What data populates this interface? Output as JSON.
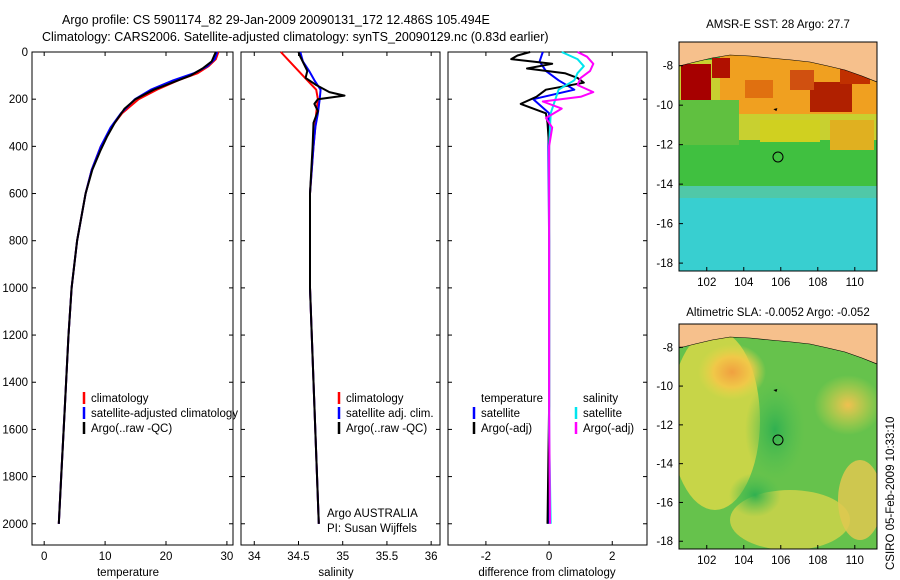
{
  "figure": {
    "title_line1": "Argo profile: CS 5901174_82 29-Jan-2009 20090131_172 12.486S 105.494E",
    "title_line2": "Climatology: CARS2006. Satellite-adjusted climatology: synTS_20090129.nc (0.83d earlier)",
    "side_label": "CSIRO 05-Feb-2009 10:33:10"
  },
  "chart_data": [
    {
      "id": "temperature",
      "type": "line",
      "xlabel": "temperature",
      "xlim": [
        -2,
        31
      ],
      "ylim": [
        0,
        2090
      ],
      "xticks": [
        "0",
        "10",
        "20",
        "30"
      ],
      "yticks": [
        "0",
        "200",
        "400",
        "600",
        "800",
        "1000",
        "1200",
        "1400",
        "1600",
        "1800",
        "2000"
      ],
      "legend": [
        "climatology",
        "satellite-adjusted climatology",
        "Argo(..raw -QC)"
      ],
      "series": [
        {
          "name": "climatology",
          "color": "#ff0000",
          "depth": [
            0,
            30,
            60,
            90,
            120,
            160,
            200,
            260,
            320,
            400,
            500,
            600,
            800,
            1000,
            1200,
            1500,
            1800,
            2000
          ],
          "values": [
            28.6,
            28.2,
            27.0,
            25.2,
            22.0,
            18.5,
            15.5,
            12.8,
            11.0,
            9.3,
            7.8,
            6.8,
            5.4,
            4.5,
            4.0,
            3.4,
            2.8,
            2.4
          ]
        },
        {
          "name": "satellite-adjusted climatology",
          "color": "#0000ff",
          "depth": [
            0,
            30,
            60,
            90,
            120,
            160,
            200,
            260,
            320,
            400,
            500,
            600,
            800,
            1000,
            1200,
            1500,
            1800,
            2000
          ],
          "values": [
            28.4,
            28.0,
            26.8,
            24.6,
            21.2,
            17.5,
            14.9,
            12.6,
            10.9,
            9.3,
            7.8,
            6.8,
            5.4,
            4.5,
            4.0,
            3.4,
            2.8,
            2.4
          ]
        },
        {
          "name": "Argo(..raw -QC)",
          "color": "#000000",
          "depth": [
            0,
            10,
            40,
            70,
            100,
            130,
            160,
            200,
            240,
            300,
            360,
            420,
            500,
            600,
            800,
            1000,
            1200,
            1500,
            1800,
            2000
          ],
          "values": [
            28.2,
            28.0,
            27.5,
            26.0,
            24.0,
            21.0,
            18.0,
            15.0,
            13.2,
            11.6,
            10.3,
            9.2,
            7.9,
            6.8,
            5.4,
            4.5,
            4.0,
            3.4,
            2.8,
            2.4
          ]
        }
      ]
    },
    {
      "id": "salinity",
      "type": "line",
      "xlabel": "salinity",
      "xlim": [
        33.85,
        36.1
      ],
      "ylim": [
        0,
        2090
      ],
      "xticks": [
        "34",
        "34.5",
        "35",
        "35.5",
        "36"
      ],
      "legend": [
        "climatology",
        "satellite adj. clim.",
        "Argo(..raw -QC)"
      ],
      "annotation": [
        "Argo AUSTRALIA",
        "PI: Susan Wijffels"
      ],
      "series": [
        {
          "name": "climatology",
          "color": "#ff0000",
          "depth": [
            0,
            40,
            80,
            120,
            160,
            200,
            260,
            320,
            400,
            600,
            1000,
            1500,
            2000
          ],
          "values": [
            34.3,
            34.4,
            34.5,
            34.6,
            34.7,
            34.72,
            34.7,
            34.69,
            34.67,
            34.63,
            34.63,
            34.68,
            34.73
          ]
        },
        {
          "name": "satellite adj. clim.",
          "color": "#0000ff",
          "depth": [
            0,
            40,
            80,
            120,
            160,
            200,
            260,
            320,
            400,
            600,
            1000,
            1500,
            2000
          ],
          "values": [
            34.52,
            34.55,
            34.62,
            34.68,
            34.75,
            34.74,
            34.72,
            34.69,
            34.67,
            34.63,
            34.63,
            34.68,
            34.73
          ]
        },
        {
          "name": "Argo(..raw -QC)",
          "color": "#000000",
          "depth": [
            0,
            20,
            50,
            80,
            110,
            140,
            170,
            185,
            200,
            220,
            250,
            300,
            400,
            600,
            1000,
            1500,
            2000
          ],
          "values": [
            34.5,
            34.52,
            34.56,
            34.6,
            34.58,
            34.7,
            34.85,
            35.02,
            34.72,
            34.68,
            34.72,
            34.67,
            34.66,
            34.63,
            34.63,
            34.68,
            34.73
          ]
        }
      ]
    },
    {
      "id": "difference",
      "type": "line",
      "xlabel": "difference from climatology",
      "xlim": [
        -3.2,
        3.1
      ],
      "ylim": [
        0,
        2090
      ],
      "xticks": [
        "-2",
        "0",
        "2"
      ],
      "legend_temperature": {
        "title": "temperature",
        "items": [
          "satellite",
          "Argo(-adj)"
        ]
      },
      "legend_salinity": {
        "title": "salinity",
        "items": [
          "satellite",
          "Argo(-adj)"
        ]
      },
      "series": [
        {
          "name": "temperature satellite",
          "color": "#0000ff",
          "depth": [
            0,
            40,
            80,
            120,
            160,
            200,
            260,
            400,
            800,
            1200,
            1600,
            2000
          ],
          "values": [
            -0.2,
            -0.3,
            -0.1,
            0.3,
            0.8,
            -0.5,
            0.0,
            -0.02,
            0.0,
            0.0,
            0.0,
            -0.02
          ]
        },
        {
          "name": "temperature Argo(-adj)",
          "color": "#000000",
          "depth": [
            0,
            15,
            30,
            50,
            70,
            90,
            110,
            130,
            160,
            190,
            220,
            260,
            300,
            400,
            600,
            1000,
            1500,
            2000
          ],
          "values": [
            -0.6,
            -1.0,
            -1.2,
            0.1,
            -0.7,
            0.5,
            0.9,
            1.1,
            -0.1,
            -0.4,
            -0.9,
            -0.1,
            -0.05,
            0.0,
            0.0,
            0.0,
            0.0,
            -0.05
          ]
        },
        {
          "name": "salinity satellite",
          "color": "#00e5ee",
          "depth": [
            0,
            30,
            60,
            90,
            120,
            160,
            200,
            260,
            400,
            800,
            1200,
            1600,
            2000
          ],
          "values": [
            0.4,
            0.9,
            1.1,
            0.9,
            0.8,
            0.3,
            0.2,
            0.05,
            0.0,
            0.0,
            0.0,
            0.0,
            0.05
          ]
        },
        {
          "name": "salinity Argo(-adj)",
          "color": "#ff00ff",
          "depth": [
            0,
            20,
            50,
            80,
            110,
            140,
            170,
            190,
            210,
            240,
            280,
            320,
            400,
            600,
            1000,
            1500,
            2000
          ],
          "values": [
            0.9,
            1.2,
            1.4,
            1.3,
            1.0,
            0.9,
            1.4,
            1.0,
            -0.2,
            0.4,
            -0.1,
            0.1,
            0.0,
            0.0,
            0.0,
            0.0,
            0.03
          ]
        }
      ]
    },
    {
      "id": "sst_map",
      "type": "heatmap",
      "title": "AMSR-E SST: 28 Argo: 27.7",
      "xlim": [
        100.5,
        111.2
      ],
      "ylim": [
        -18.4,
        -6.8
      ],
      "xticks": [
        "102",
        "104",
        "106",
        "108",
        "110"
      ],
      "yticks": [
        "-8",
        "-10",
        "-12",
        "-14",
        "-16",
        "-18"
      ],
      "float_position": {
        "lon": 105.494,
        "lat": -12.486
      },
      "colors": {
        "land": "#f6c08c",
        "warm": "#a60000",
        "orange": "#f0a020",
        "yellow": "#d8d820",
        "green": "#40c040",
        "cyan": "#40d0d0"
      }
    },
    {
      "id": "sla_map",
      "type": "heatmap",
      "title": "Altimetric SLA: -0.0052 Argo: -0.052",
      "xlim": [
        100.5,
        111.2
      ],
      "ylim": [
        -18.4,
        -6.8
      ],
      "xticks": [
        "102",
        "104",
        "106",
        "108",
        "110"
      ],
      "yticks": [
        "-8",
        "-10",
        "-12",
        "-14",
        "-16",
        "-18"
      ],
      "float_position": {
        "lon": 105.494,
        "lat": -12.486
      },
      "colors": {
        "land": "#f6c08c",
        "orange": "#f0a040",
        "yellow": "#d8d840",
        "green": "#50c050"
      }
    }
  ]
}
